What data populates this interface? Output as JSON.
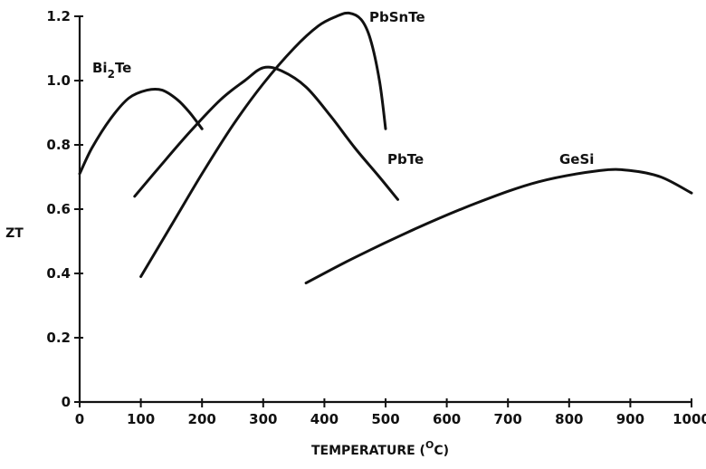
{
  "chart_data": {
    "type": "line",
    "title": "",
    "xlabel": "TEMPERATURE",
    "xlabel_unit_prefix": "(",
    "xlabel_unit_sup": "O",
    "xlabel_unit_main": "C)",
    "ylabel": "ZT",
    "xlim": [
      0,
      1000
    ],
    "ylim": [
      0,
      1.2
    ],
    "x_ticks": [
      0,
      100,
      200,
      300,
      400,
      500,
      600,
      700,
      800,
      900,
      1000
    ],
    "x_tick_labels": [
      "0",
      "100",
      "200",
      "300",
      "400",
      "500",
      "600",
      "700",
      "800",
      "900",
      "1000"
    ],
    "y_ticks": [
      0,
      0.2,
      0.4,
      0.6,
      0.8,
      1.0,
      1.2
    ],
    "y_tick_labels": [
      "0",
      "0.2",
      "0.4",
      "0.6",
      "0.8",
      "1.0",
      "1.2"
    ],
    "grid": false,
    "legend": "none",
    "series": [
      {
        "name": "Bi2Te",
        "label_main": "Bi",
        "label_sub": "2",
        "label_tail": "Te",
        "x": [
          0,
          20,
          50,
          80,
          110,
          135,
          160,
          180,
          200
        ],
        "y": [
          0.71,
          0.79,
          0.88,
          0.945,
          0.97,
          0.97,
          0.94,
          0.9,
          0.85
        ]
      },
      {
        "name": "PbTe",
        "label_main": "PbTe",
        "x": [
          90,
          130,
          180,
          230,
          270,
          300,
          330,
          370,
          410,
          450,
          490,
          520
        ],
        "y": [
          0.64,
          0.73,
          0.84,
          0.94,
          1.0,
          1.04,
          1.03,
          0.98,
          0.89,
          0.79,
          0.7,
          0.63
        ]
      },
      {
        "name": "PbSnTe",
        "label_main": "PbSnTe",
        "x": [
          100,
          150,
          200,
          250,
          300,
          350,
          390,
          420,
          440,
          460,
          475,
          490,
          500
        ],
        "y": [
          0.39,
          0.55,
          0.71,
          0.86,
          0.99,
          1.1,
          1.17,
          1.2,
          1.21,
          1.19,
          1.13,
          1.0,
          0.85
        ]
      },
      {
        "name": "GeSi",
        "label_main": "GeSi",
        "x": [
          370,
          450,
          550,
          650,
          750,
          850,
          900,
          950,
          1000
        ],
        "y": [
          0.37,
          0.45,
          0.54,
          0.62,
          0.685,
          0.72,
          0.72,
          0.7,
          0.65
        ]
      }
    ]
  }
}
